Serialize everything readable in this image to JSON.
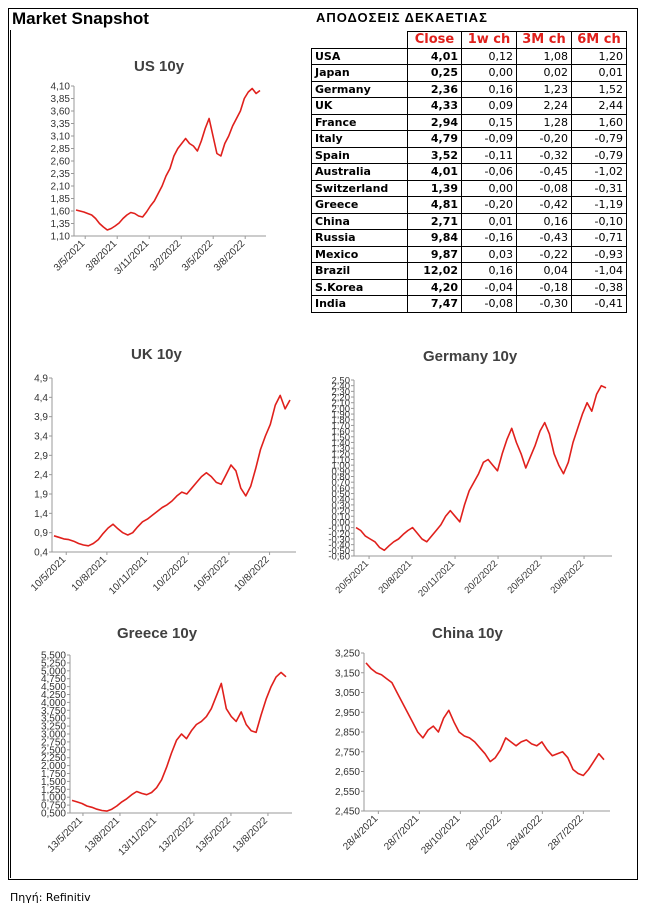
{
  "header": {
    "title": "Market Snapshot",
    "table_title": "ΑΠΟΔΟΣΕΙΣ ΔΕΚΑΕΤΙΑΣ"
  },
  "table": {
    "columns": [
      "",
      "Close",
      "1w ch",
      "3M ch",
      "6M ch"
    ],
    "rows": [
      [
        "USA",
        "4,01",
        "0,12",
        "1,08",
        "1,20"
      ],
      [
        "Japan",
        "0,25",
        "0,00",
        "0,02",
        "0,01"
      ],
      [
        "Germany",
        "2,36",
        "0,16",
        "1,23",
        "1,52"
      ],
      [
        "UK",
        "4,33",
        "0,09",
        "2,24",
        "2,44"
      ],
      [
        "France",
        "2,94",
        "0,15",
        "1,28",
        "1,60"
      ],
      [
        "Italy",
        "4,79",
        "-0,09",
        "-0,20",
        "-0,79"
      ],
      [
        "Spain",
        "3,52",
        "-0,11",
        "-0,32",
        "-0,79"
      ],
      [
        "Australia",
        "4,01",
        "-0,06",
        "-0,45",
        "-1,02"
      ],
      [
        "Switzerland",
        "1,39",
        "0,00",
        "-0,08",
        "-0,31"
      ],
      [
        "Greece",
        "4,81",
        "-0,20",
        "-0,42",
        "-1,19"
      ],
      [
        "China",
        "2,71",
        "0,01",
        "0,16",
        "-0,10"
      ],
      [
        "Russia",
        "9,84",
        "-0,16",
        "-0,43",
        "-0,71"
      ],
      [
        "Mexico",
        "9,87",
        "0,03",
        "-0,22",
        "-0,93"
      ],
      [
        "Brazil",
        "12,02",
        "0,16",
        "0,04",
        "-1,04"
      ],
      [
        "S.Korea",
        "4,20",
        "-0,04",
        "-0,18",
        "-0,38"
      ],
      [
        "India",
        "7,47",
        "-0,08",
        "-0,30",
        "-0,41"
      ]
    ]
  },
  "source": "Πηγή: Refinitiv",
  "colors": {
    "line": "#e0201c",
    "header_red": "#e0201c",
    "axis": "#999999"
  },
  "chart_data": [
    {
      "id": "us",
      "type": "line",
      "title": "US 10y",
      "series": [
        {
          "values": [
            1.62,
            1.6,
            1.58,
            1.55,
            1.52,
            1.45,
            1.35,
            1.28,
            1.22,
            1.25,
            1.3,
            1.36,
            1.45,
            1.52,
            1.57,
            1.55,
            1.5,
            1.48,
            1.58,
            1.7,
            1.8,
            1.95,
            2.1,
            2.3,
            2.45,
            2.7,
            2.85,
            2.95,
            3.05,
            2.95,
            2.9,
            2.8,
            3.0,
            3.25,
            3.45,
            3.1,
            2.75,
            2.7,
            2.95,
            3.1,
            3.3,
            3.45,
            3.6,
            3.85,
            3.98,
            4.05,
            3.95,
            4.01
          ]
        }
      ],
      "ylim": [
        1.1,
        4.1
      ],
      "yticks": [
        "1,10",
        "1,35",
        "1,60",
        "1,85",
        "2,10",
        "2,35",
        "2,60",
        "2,85",
        "3,10",
        "3,35",
        "3,60",
        "3,85",
        "4,10"
      ],
      "xticks": [
        "3/5/2021",
        "3/8/2021",
        "3/11/2021",
        "3/2/2022",
        "3/5/2022",
        "3/8/2022"
      ]
    },
    {
      "id": "uk",
      "type": "line",
      "title": "UK 10y",
      "series": [
        {
          "values": [
            0.82,
            0.78,
            0.74,
            0.72,
            0.68,
            0.62,
            0.58,
            0.56,
            0.62,
            0.72,
            0.88,
            1.02,
            1.12,
            1.0,
            0.9,
            0.84,
            0.9,
            1.05,
            1.18,
            1.25,
            1.35,
            1.45,
            1.55,
            1.62,
            1.72,
            1.85,
            1.95,
            1.9,
            2.05,
            2.2,
            2.35,
            2.45,
            2.35,
            2.2,
            2.15,
            2.4,
            2.65,
            2.5,
            2.05,
            1.85,
            2.1,
            2.55,
            3.05,
            3.4,
            3.7,
            4.2,
            4.45,
            4.1,
            4.33
          ]
        }
      ],
      "ylim": [
        0.4,
        4.9
      ],
      "yticks": [
        "0,4",
        "0,9",
        "1,4",
        "1,9",
        "2,4",
        "2,9",
        "3,4",
        "3,9",
        "4,4",
        "4,9"
      ],
      "xticks": [
        "10/5/2021",
        "10/8/2021",
        "10/11/2021",
        "10/2/2022",
        "10/5/2022",
        "10/8/2022"
      ]
    },
    {
      "id": "germany",
      "type": "line",
      "title": "Germany 10y",
      "series": [
        {
          "values": [
            -0.1,
            -0.15,
            -0.25,
            -0.3,
            -0.35,
            -0.45,
            -0.5,
            -0.42,
            -0.35,
            -0.3,
            -0.22,
            -0.15,
            -0.1,
            -0.2,
            -0.3,
            -0.35,
            -0.25,
            -0.15,
            -0.05,
            0.1,
            0.2,
            0.1,
            0.0,
            0.3,
            0.55,
            0.7,
            0.85,
            1.05,
            1.1,
            1.0,
            0.9,
            1.2,
            1.45,
            1.65,
            1.4,
            1.2,
            0.95,
            1.15,
            1.35,
            1.6,
            1.75,
            1.55,
            1.2,
            1.0,
            0.85,
            1.05,
            1.4,
            1.65,
            1.9,
            2.1,
            1.95,
            2.25,
            2.4,
            2.36
          ]
        }
      ],
      "ylim": [
        -0.6,
        2.5
      ],
      "yticks": [
        "-0,60",
        "-0,50",
        "-0,40",
        "-0,30",
        "-0,20",
        "-0,10",
        "0,00",
        "0,10",
        "0,20",
        "0,30",
        "0,40",
        "0,50",
        "0,60",
        "0,70",
        "0,80",
        "0,90",
        "1,00",
        "1,10",
        "1,20",
        "1,30",
        "1,40",
        "1,50",
        "1,60",
        "1,70",
        "1,80",
        "1,90",
        "2,00",
        "2,10",
        "2,20",
        "2,30",
        "2,40",
        "2,50"
      ],
      "xticks": [
        "20/5/2021",
        "20/8/2021",
        "20/11/2021",
        "20/2/2022",
        "20/5/2022",
        "20/8/2022"
      ]
    },
    {
      "id": "greece",
      "type": "line",
      "title": "Greece 10y",
      "series": [
        {
          "values": [
            0.9,
            0.85,
            0.8,
            0.72,
            0.68,
            0.62,
            0.58,
            0.56,
            0.62,
            0.72,
            0.85,
            0.95,
            1.08,
            1.18,
            1.12,
            1.08,
            1.15,
            1.3,
            1.55,
            1.95,
            2.4,
            2.8,
            3.0,
            2.85,
            3.1,
            3.3,
            3.4,
            3.55,
            3.8,
            4.2,
            4.6,
            3.8,
            3.55,
            3.4,
            3.7,
            3.3,
            3.1,
            3.05,
            3.6,
            4.1,
            4.5,
            4.8,
            4.95,
            4.81
          ]
        }
      ],
      "ylim": [
        0.5,
        5.5
      ],
      "yticks": [
        "0,500",
        "0,750",
        "1,000",
        "1,250",
        "1,500",
        "1,750",
        "2,000",
        "2,250",
        "2,500",
        "2,750",
        "3,000",
        "3,250",
        "3,500",
        "3,750",
        "4,000",
        "4,250",
        "4,500",
        "4,750",
        "5,000",
        "5,250",
        "5,500"
      ],
      "xticks": [
        "13/5/2021",
        "13/8/2021",
        "13/11/2021",
        "13/2/2022",
        "13/5/2022",
        "13/8/2022"
      ]
    },
    {
      "id": "china",
      "type": "line",
      "title": "China 10y",
      "series": [
        {
          "values": [
            3.2,
            3.17,
            3.15,
            3.14,
            3.12,
            3.1,
            3.05,
            3.0,
            2.95,
            2.9,
            2.85,
            2.82,
            2.86,
            2.88,
            2.85,
            2.92,
            2.96,
            2.9,
            2.85,
            2.83,
            2.82,
            2.8,
            2.77,
            2.74,
            2.7,
            2.72,
            2.76,
            2.82,
            2.8,
            2.78,
            2.8,
            2.81,
            2.79,
            2.78,
            2.8,
            2.76,
            2.73,
            2.74,
            2.75,
            2.72,
            2.66,
            2.64,
            2.63,
            2.66,
            2.7,
            2.74,
            2.71
          ]
        }
      ],
      "ylim": [
        2.45,
        3.25
      ],
      "yticks": [
        "2,450",
        "2,550",
        "2,650",
        "2,750",
        "2,850",
        "2,950",
        "3,050",
        "3,150",
        "3,250"
      ],
      "xticks": [
        "28/4/2021",
        "28/7/2021",
        "28/10/2021",
        "28/1/2022",
        "28/4/2022",
        "28/7/2022"
      ]
    }
  ]
}
